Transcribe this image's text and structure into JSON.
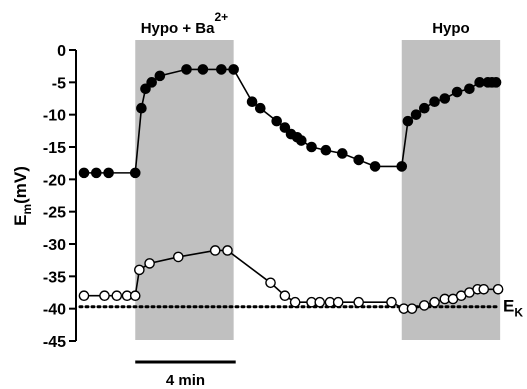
{
  "chart_data": {
    "type": "line",
    "title": "",
    "xlabel": "",
    "ylabel": {
      "main": "E",
      "sub": "m",
      "rest": "(mV)"
    },
    "ylim": [
      -45,
      0
    ],
    "xlim": [
      0,
      100
    ],
    "yticks": [
      0,
      -5,
      -10,
      -15,
      -20,
      -25,
      -30,
      -35,
      -40,
      -45
    ],
    "grid": false,
    "bands": [
      {
        "label": "Hypo + Ba",
        "superscript": "2+",
        "x_start": 12.5,
        "x_end": 36.5,
        "color": "#c0c0c0"
      },
      {
        "label": "Hypo",
        "superscript": "",
        "x_start": 77.5,
        "x_end": 101.5,
        "color": "#c0c0c0"
      }
    ],
    "reference_line": {
      "label": "E",
      "sub": "K",
      "y": -39.7,
      "style": "dotted"
    },
    "scale_bar": {
      "label": "4 min",
      "x_start": 12.5,
      "x_end": 37
    },
    "series": [
      {
        "marker": "filled",
        "x": [
          0,
          3,
          6,
          12.5,
          14,
          15,
          16.5,
          18.5,
          25,
          29,
          33.5,
          36.5,
          41,
          43,
          47,
          49,
          50.5,
          52,
          53,
          55.5,
          59,
          63,
          67,
          71,
          77.5,
          79,
          81,
          83,
          85.5,
          88,
          91,
          94,
          96.5,
          98.5,
          99.5,
          100.5
        ],
        "y": [
          -19,
          -19,
          -19,
          -19,
          -9,
          -6,
          -5,
          -4,
          -3,
          -3,
          -3,
          -3,
          -8,
          -9,
          -11,
          -12,
          -13,
          -13.5,
          -14,
          -15,
          -15.5,
          -16,
          -17,
          -18,
          -18,
          -11,
          -10,
          -9,
          -8,
          -7.5,
          -6.5,
          -6,
          -5,
          -5,
          -5,
          -5
        ]
      },
      {
        "marker": "open",
        "x": [
          0,
          5,
          8,
          10.5,
          12.5,
          13.5,
          16,
          23,
          32,
          35,
          45.5,
          49,
          51.5,
          55.5,
          57.5,
          60,
          62,
          67,
          75,
          78,
          80,
          83,
          85.5,
          88,
          90,
          92,
          94,
          96,
          97.5,
          101
        ],
        "y": [
          -38,
          -38,
          -38,
          -38,
          -38,
          -34,
          -33,
          -32,
          -31,
          -31,
          -36,
          -38,
          -39,
          -39,
          -39,
          -39,
          -39,
          -39,
          -39,
          -40,
          -40,
          -39.5,
          -39,
          -38.5,
          -38.5,
          -38,
          -37.5,
          -37,
          -37,
          -37
        ]
      }
    ]
  }
}
